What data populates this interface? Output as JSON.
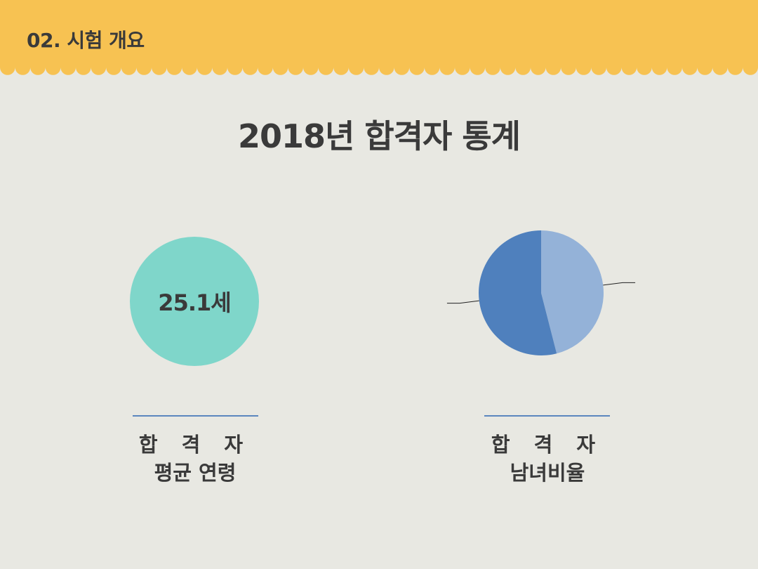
{
  "header": {
    "section_label": "02. 시험 개요",
    "band_color": "#f7c252"
  },
  "page_title": "2018년 합격자 통계",
  "age_stat": {
    "value": "25.1세",
    "circle_color": "#7fd6ca",
    "caption_line1": "합 격 자",
    "caption_line2": "평균 연령"
  },
  "chart_data": {
    "type": "pie",
    "title": "",
    "series": [
      {
        "values": [
          46,
          54
        ]
      }
    ],
    "colors": [
      "#94b2d8",
      "#4f80bd"
    ],
    "start_angle_deg": 0,
    "direction": "clockwise",
    "data_labels": "none"
  },
  "gender_stat": {
    "caption_line1": "합 격 자",
    "caption_line2": "남녀비율"
  }
}
